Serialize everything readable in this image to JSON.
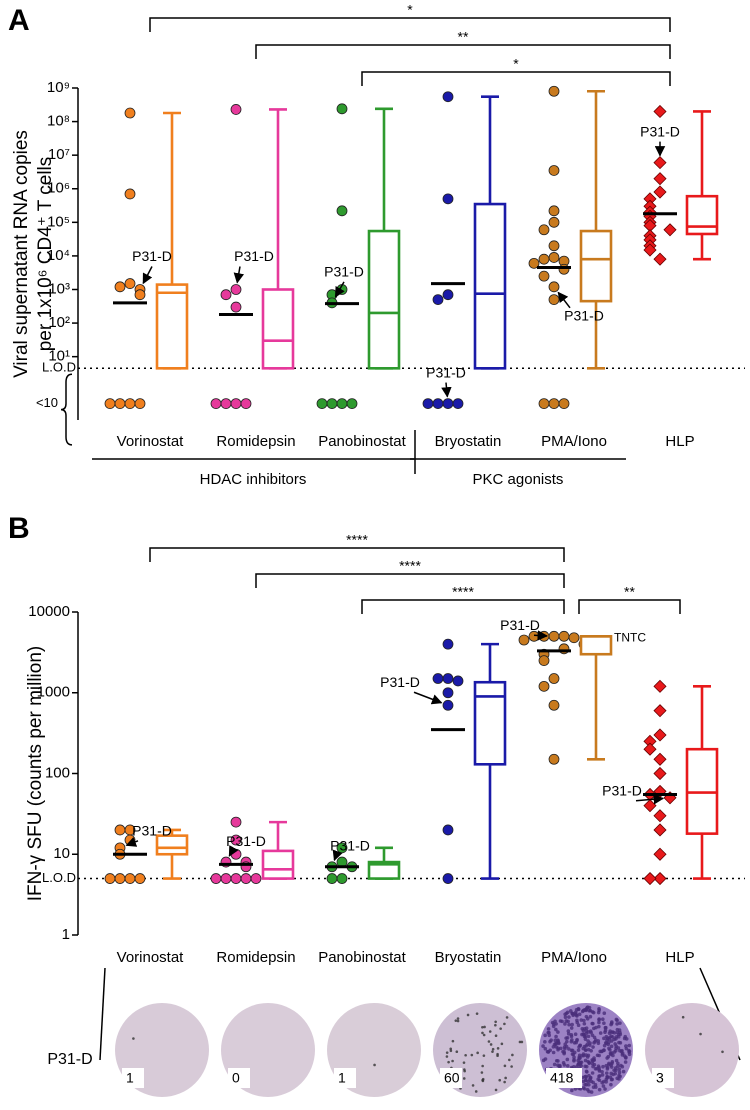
{
  "panel_labels": [
    "A",
    "B"
  ],
  "chart_data": [
    {
      "type": "box",
      "y_label": [
        "Viral supernatant RNA copies",
        "per 1x10⁶ CD4⁺ T cells"
      ],
      "log_scale": true,
      "ylim": [
        0.13,
        1000000000
      ],
      "yticks": [
        {
          "value": 1000000000,
          "label": "10⁹"
        },
        {
          "value": 100000000,
          "label": "10⁸"
        },
        {
          "value": 10000000,
          "label": "10⁷"
        },
        {
          "value": 1000000,
          "label": "10⁶"
        },
        {
          "value": 100000,
          "label": "10⁵"
        },
        {
          "value": 10000,
          "label": "10⁴"
        },
        {
          "value": 1000,
          "label": "10³"
        },
        {
          "value": 100,
          "label": "10²"
        },
        {
          "value": 10,
          "label": "10¹"
        }
      ],
      "lod": {
        "value": 4.5,
        "label": "L.O.D"
      },
      "below_lod": {
        "value": 0.4,
        "label": "<10"
      },
      "categories": [
        "Vorinostat",
        "Romidepsin",
        "Panobinostat",
        "Bryostatin",
        "PMA/Iono",
        "HLP"
      ],
      "groups": [
        "HDAC inhibitors",
        "PKC agonists"
      ],
      "series": [
        {
          "color": "#f07f1e",
          "marker": "circle",
          "points": [
            180000000,
            700000,
            1500,
            1200,
            1000,
            700,
            0.4,
            0.4,
            0.4,
            0.4
          ],
          "median": 400,
          "box": [
            4.5,
            4.5,
            800,
            1400,
            180000000
          ]
        },
        {
          "color": "#e6399b",
          "marker": "circle",
          "points": [
            230000000,
            1000,
            700,
            300,
            0.4,
            0.4,
            0.4,
            0.4
          ],
          "median": 180,
          "box": [
            4.5,
            4.5,
            30,
            1000,
            230000000
          ]
        },
        {
          "color": "#2e9a2e",
          "marker": "circle",
          "points": [
            240000000,
            220000,
            1000,
            700,
            400,
            0.4,
            0.4,
            0.4,
            0.4
          ],
          "median": 380,
          "box": [
            4.5,
            4.5,
            200,
            55000,
            240000000
          ]
        },
        {
          "color": "#1a1aa8",
          "marker": "circle",
          "points": [
            550000000,
            500000,
            700,
            500,
            0.4,
            0.4,
            0.4,
            0.4
          ],
          "median": 1500,
          "box": [
            4.5,
            4.5,
            750,
            350000,
            550000000
          ]
        },
        {
          "color": "#c87a1e",
          "marker": "circle",
          "points": [
            800000000,
            3500000,
            220000,
            100000,
            60000,
            20000,
            9000,
            8000,
            7000,
            6000,
            4000,
            2500,
            1200,
            500,
            0.4,
            0.4,
            0.4
          ],
          "median": 4500,
          "box": [
            4.5,
            450,
            8000,
            55000,
            800000000
          ]
        },
        {
          "color": "#e8191b",
          "marker": "diamond",
          "points": [
            200000000,
            6000000,
            2000000,
            800000,
            500000,
            300000,
            200000,
            150000,
            100000,
            80000,
            60000,
            40000,
            30000,
            20000,
            15000,
            8000
          ],
          "median": 180000,
          "box": [
            8000,
            45000,
            75000,
            600000,
            200000000
          ]
        }
      ],
      "annotations": [
        {
          "text": "P31-D",
          "series": 0,
          "point": 4
        },
        {
          "text": "P31-D",
          "series": 1,
          "point": 1
        },
        {
          "text": "P31-D",
          "series": 2,
          "point": 4
        },
        {
          "text": "P31-D",
          "series": 3,
          "point": 4
        },
        {
          "text": "P31-D",
          "series": 4,
          "point": 12
        },
        {
          "text": "P31-D",
          "series": 5,
          "point": 1
        }
      ],
      "significance": [
        {
          "from": 0,
          "to": 5,
          "label": "*"
        },
        {
          "from": 1,
          "to": 5,
          "label": "**"
        },
        {
          "from": 2,
          "to": 5,
          "label": "*"
        }
      ]
    },
    {
      "type": "box",
      "y_label": [
        "IFN-γ SFU (counts per million)"
      ],
      "log_scale": true,
      "ylim": [
        1,
        10000
      ],
      "yticks": [
        10000,
        1000,
        100,
        10,
        1
      ],
      "lod": {
        "value": 5,
        "label": "L.O.D"
      },
      "categories": [
        "Vorinostat",
        "Romidepsin",
        "Panobinostat",
        "Bryostatin",
        "PMA/Iono",
        "HLP"
      ],
      "series": [
        {
          "color": "#f07f1e",
          "marker": "circle",
          "points": [
            20,
            20,
            15,
            12,
            10,
            5,
            5,
            5,
            5
          ],
          "median": 10,
          "box": [
            5,
            10,
            12,
            17,
            20
          ]
        },
        {
          "color": "#e6399b",
          "marker": "circle",
          "points": [
            25,
            15,
            10,
            8,
            8,
            7,
            5,
            5,
            5,
            5,
            5
          ],
          "median": 7.5,
          "box": [
            5,
            5,
            6.5,
            11,
            25
          ]
        },
        {
          "color": "#2e9a2e",
          "marker": "circle",
          "points": [
            12,
            8,
            7,
            7,
            5,
            5
          ],
          "median": 7,
          "box": [
            5,
            5,
            7.5,
            8,
            12
          ]
        },
        {
          "color": "#1a1aa8",
          "marker": "circle",
          "points": [
            4000,
            1500,
            1500,
            1400,
            1000,
            700,
            20,
            5
          ],
          "median": 350,
          "box": [
            5,
            130,
            900,
            1350,
            4000
          ]
        },
        {
          "color": "#c87a1e",
          "marker": "circle",
          "points": [
            5000,
            5000,
            5000,
            5000,
            4800,
            4500,
            4000,
            3500,
            3000,
            2500,
            1500,
            1200,
            700,
            150
          ],
          "median": 3300,
          "box": [
            150,
            3000,
            5000,
            5000,
            5000
          ],
          "note": "TNTC"
        },
        {
          "color": "#e8191b",
          "marker": "diamond",
          "points": [
            1200,
            600,
            300,
            250,
            200,
            150,
            100,
            60,
            55,
            50,
            40,
            30,
            20,
            10,
            5,
            5
          ],
          "median": 55,
          "box": [
            5,
            18,
            58,
            200,
            1200
          ]
        }
      ],
      "annotations": [
        {
          "text": "P31-D",
          "series": 0,
          "point": 3
        },
        {
          "text": "P31-D",
          "series": 1,
          "point": 3
        },
        {
          "text": "P31-D",
          "series": 2,
          "point": 2
        },
        {
          "text": "P31-D",
          "series": 3,
          "point": 5
        },
        {
          "text": "P31-D",
          "series": 4,
          "point": 0
        },
        {
          "text": "P31-D",
          "series": 5,
          "point": 9
        }
      ],
      "significance": [
        {
          "from": 0,
          "to": 4,
          "label": "****"
        },
        {
          "from": 1,
          "to": 4,
          "label": "****"
        },
        {
          "from": 2,
          "to": 4,
          "label": "****"
        },
        {
          "from": 4,
          "to": 5,
          "label": "**"
        }
      ]
    }
  ],
  "wells": {
    "label": "P31-D",
    "counts": [
      1,
      0,
      1,
      60,
      418,
      3
    ]
  }
}
